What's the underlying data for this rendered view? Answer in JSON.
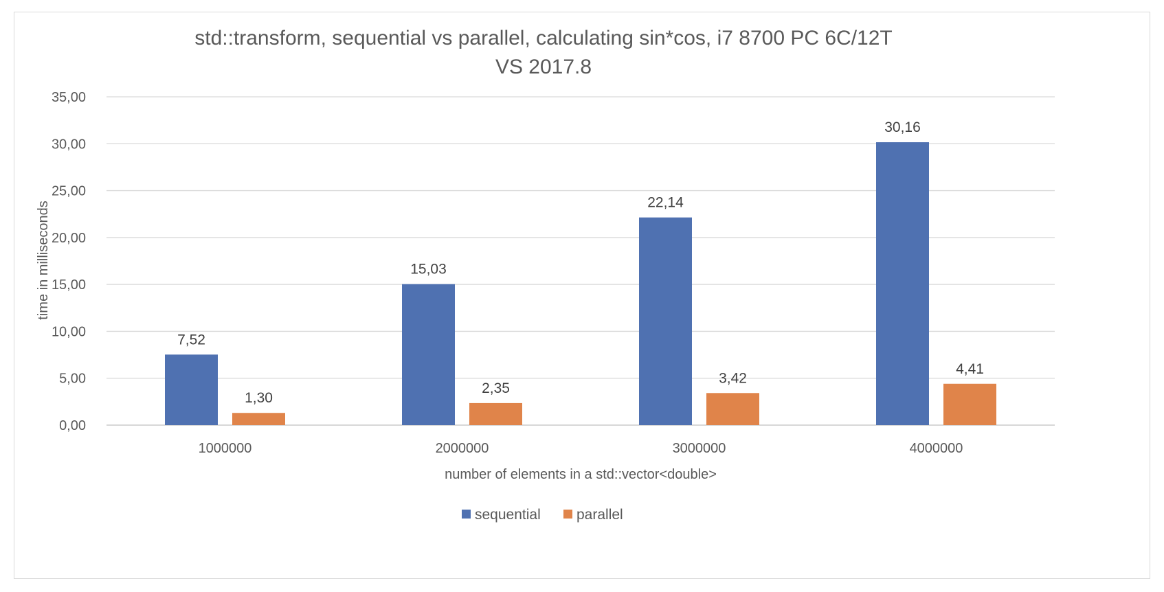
{
  "chart_data": {
    "type": "bar",
    "title": "std::transform, sequential vs parallel,  calculating sin*cos, i7 8700 PC 6C/12T",
    "subtitle": "VS 2017.8",
    "xlabel": "number of elements in a std::vector<double>",
    "ylabel": "time in milliseconds",
    "categories": [
      "1000000",
      "2000000",
      "3000000",
      "4000000"
    ],
    "series": [
      {
        "name": "sequential",
        "color": "#4f71b1",
        "values": [
          7.52,
          15.03,
          22.14,
          30.16
        ],
        "labels": [
          "7,52",
          "15,03",
          "22,14",
          "30,16"
        ]
      },
      {
        "name": "parallel",
        "color": "#e0844a",
        "values": [
          1.3,
          2.35,
          3.42,
          4.41
        ],
        "labels": [
          "1,30",
          "2,35",
          "3,42",
          "4,41"
        ]
      }
    ],
    "ylim": [
      0,
      35
    ],
    "yticks": [
      0,
      5,
      10,
      15,
      20,
      25,
      30,
      35
    ],
    "ytick_labels": [
      "0,00",
      "5,00",
      "10,00",
      "15,00",
      "20,00",
      "25,00",
      "30,00",
      "35,00"
    ],
    "grid": true,
    "legend_position": "bottom"
  }
}
